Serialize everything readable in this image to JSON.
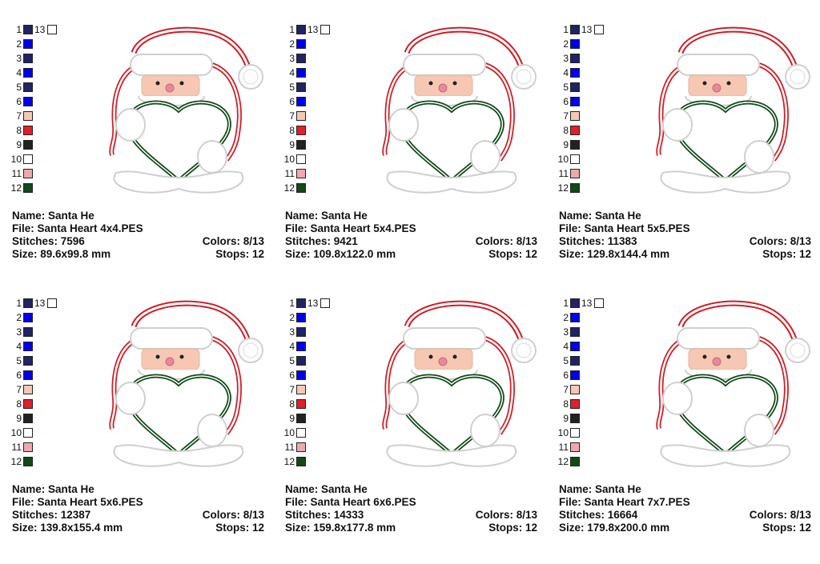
{
  "colors": {
    "navy": "#222266",
    "blue": "#0000ee",
    "peach": "#f6c8b4",
    "red": "#e0202a",
    "black": "#222222",
    "white": "#ffffff",
    "pink": "#f0a8b0",
    "green": "#0f4a17"
  },
  "swatch_list": [
    {
      "num": "1",
      "color": "#222266"
    },
    {
      "num": "2",
      "color": "#0000ee"
    },
    {
      "num": "3",
      "color": "#222266"
    },
    {
      "num": "4",
      "color": "#0000ee"
    },
    {
      "num": "5",
      "color": "#222266"
    },
    {
      "num": "6",
      "color": "#0000ee"
    },
    {
      "num": "7",
      "color": "#f6c8b4"
    },
    {
      "num": "8",
      "color": "#e0202a"
    },
    {
      "num": "9",
      "color": "#222222"
    },
    {
      "num": "10",
      "color": "#ffffff"
    },
    {
      "num": "11",
      "color": "#f0a8b0"
    },
    {
      "num": "12",
      "color": "#0f4a17"
    }
  ],
  "extra_swatch": {
    "num": "13",
    "color": "#ffffff"
  },
  "cards": [
    {
      "name": "Name: Santa He",
      "file": "File: Santa Heart 4x4.PES",
      "stitches": "Stitches: 7596",
      "colors": "Colors: 8/13",
      "size": "Size: 89.6x99.8 mm",
      "stops": "Stops: 12"
    },
    {
      "name": "Name: Santa He",
      "file": "File: Santa Heart 5x4.PES",
      "stitches": "Stitches: 9421",
      "colors": "Colors: 8/13",
      "size": "Size: 109.8x122.0 mm",
      "stops": "Stops: 12"
    },
    {
      "name": "Name: Santa He",
      "file": "File: Santa Heart 5x5.PES",
      "stitches": "Stitches: 11383",
      "colors": "Colors: 8/13",
      "size": "Size: 129.8x144.4 mm",
      "stops": "Stops: 12"
    },
    {
      "name": "Name: Santa He",
      "file": "File: Santa Heart 5x6.PES",
      "stitches": "Stitches: 12387",
      "colors": "Colors: 8/13",
      "size": "Size: 139.8x155.4 mm",
      "stops": "Stops: 12"
    },
    {
      "name": "Name: Santa He",
      "file": "File: Santa Heart 6x6.PES",
      "stitches": "Stitches: 14333",
      "colors": "Colors: 8/13",
      "size": "Size: 159.8x177.8 mm",
      "stops": "Stops: 12"
    },
    {
      "name": "Name: Santa He",
      "file": "File: Santa Heart 7x7.PES",
      "stitches": "Stitches: 16664",
      "colors": "Colors: 8/13",
      "size": "Size: 179.8x200.0 mm",
      "stops": "Stops: 12"
    }
  ]
}
